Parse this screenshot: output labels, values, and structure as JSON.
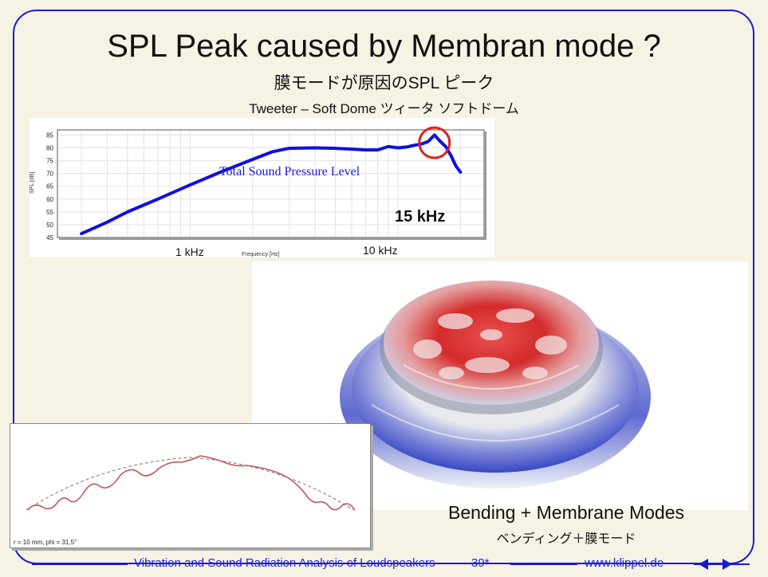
{
  "slide": {
    "title": "SPL Peak caused by  Membran mode ?",
    "subtitle_jp": "膜モードが原因のSPL ピーク",
    "subtitle_en": "Tweeter – Soft Dome    ツィータ  ソフトドーム"
  },
  "chart_data": {
    "type": "line",
    "ylabel": "SPL [dB]",
    "xlabel": "Frequency [Hz]",
    "y_ticks": [
      "85",
      "80",
      "75",
      "70",
      "65",
      "60",
      "55",
      "50",
      "45"
    ],
    "ylim": [
      45,
      87
    ],
    "x_tick_labels": [
      "1 kHz",
      "10  kHz"
    ],
    "annotation": "Total Sound Pressure Level",
    "peak_label": "15 kHz",
    "series": [
      {
        "name": "Total Sound Pressure Level",
        "x": [
          300,
          400,
          500,
          700,
          1000,
          1400,
          2000,
          2500,
          3000,
          4000,
          5000,
          6000,
          7000,
          8000,
          9000,
          10000,
          11000,
          12000,
          13000,
          14000,
          15000,
          16000,
          17000,
          18000,
          19000,
          20000
        ],
        "y": [
          46.5,
          51,
          55,
          60,
          65.5,
          70.5,
          75.5,
          78.5,
          79.8,
          80,
          79.8,
          79.5,
          79.2,
          79.2,
          80.5,
          80,
          80.3,
          81,
          81.5,
          82.5,
          85,
          82.5,
          80.5,
          77,
          73,
          70.5
        ],
        "color": "#1010e0"
      }
    ],
    "highlight_color": "#e0201c"
  },
  "modes": {
    "label_en": "Bending + Membrane Modes",
    "label_jp": "ベンディング＋膜モード"
  },
  "profile": {
    "caption": "r = 10 mm, phi = 31,5°"
  },
  "footer": {
    "title": "Vibration and Sound Radiation Analysis of Loudspeakers",
    "page": "39*",
    "url": "www.klippel.de"
  },
  "colors": {
    "frame": "#1a1ad6",
    "background": "#f6f2e4",
    "accent": "#2020d8"
  }
}
